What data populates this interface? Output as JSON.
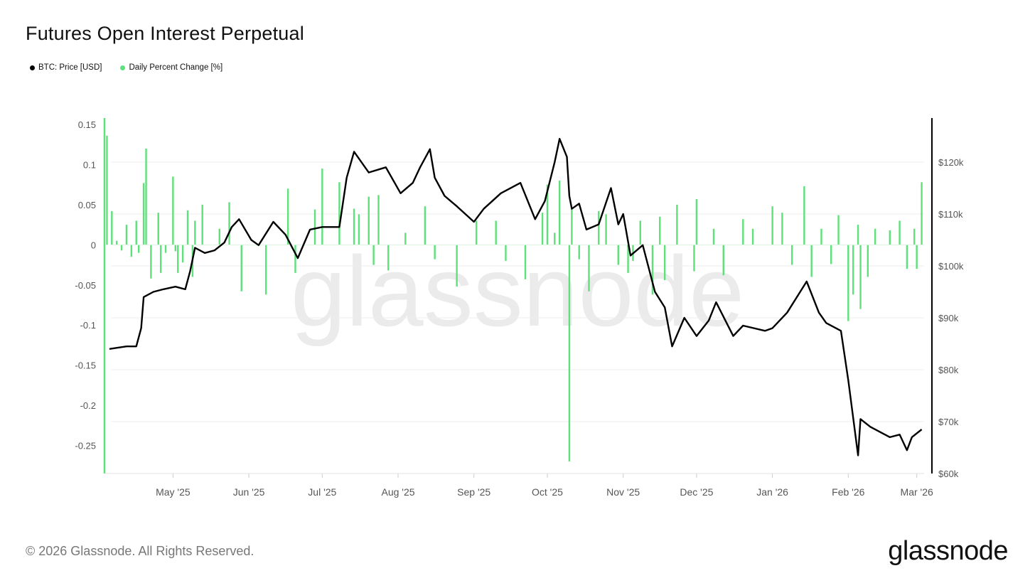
{
  "title": "Futures Open Interest Perpetual",
  "legend": [
    {
      "label": "BTC: Price [USD]",
      "color": "#000000"
    },
    {
      "label": "Daily Percent Change [%]",
      "color": "#5ee07a"
    }
  ],
  "footer": "© 2026 Glassnode. All Rights Reserved.",
  "brand": "glassnode",
  "watermark": "glassnode",
  "chart_data": {
    "type": "line+bar",
    "left_axis": {
      "label": "",
      "ticks": [
        "0.15",
        "0.1",
        "0.05",
        "0",
        "-0.05",
        "-0.1",
        "-0.15",
        "-0.2",
        "-0.25"
      ],
      "values": [
        0.15,
        0.1,
        0.05,
        0,
        -0.05,
        -0.1,
        -0.15,
        -0.2,
        -0.25
      ],
      "range": [
        -0.285,
        0.158
      ]
    },
    "right_axis": {
      "label": "",
      "ticks": [
        "$120k",
        "$110k",
        "$100k",
        "$90k",
        "$80k",
        "$70k",
        "$60k"
      ],
      "values": [
        120000,
        110000,
        100000,
        90000,
        80000,
        70000,
        60000
      ],
      "range": [
        60000,
        128500
      ]
    },
    "x_ticks": [
      "May '25",
      "Jun '25",
      "Jul '25",
      "Aug '25",
      "Sep '25",
      "Oct '25",
      "Nov '25",
      "Dec '25",
      "Jan '26",
      "Feb '26",
      "Mar '26"
    ],
    "x_tick_dates": [
      "2025-05-01",
      "2025-06-01",
      "2025-07-01",
      "2025-08-01",
      "2025-09-01",
      "2025-10-01",
      "2025-11-01",
      "2025-12-01",
      "2026-01-01",
      "2026-02-01",
      "2026-03-01"
    ],
    "x_range": [
      "2025-04-03",
      "2026-03-04"
    ],
    "grid": true,
    "legend_position": "top-left",
    "series": [
      {
        "name": "BTC: Price [USD]",
        "axis": "right",
        "color": "#000000",
        "points": [
          [
            "2025-04-05",
            84000
          ],
          [
            "2025-04-12",
            84500
          ],
          [
            "2025-04-16",
            84500
          ],
          [
            "2025-04-18",
            88000
          ],
          [
            "2025-04-19",
            94000
          ],
          [
            "2025-04-23",
            95000
          ],
          [
            "2025-04-27",
            95500
          ],
          [
            "2025-05-02",
            96000
          ],
          [
            "2025-05-06",
            95500
          ],
          [
            "2025-05-08",
            99000
          ],
          [
            "2025-05-10",
            103500
          ],
          [
            "2025-05-14",
            102500
          ],
          [
            "2025-05-18",
            103000
          ],
          [
            "2025-05-22",
            104500
          ],
          [
            "2025-05-25",
            107500
          ],
          [
            "2025-05-28",
            109000
          ],
          [
            "2025-06-02",
            105000
          ],
          [
            "2025-06-05",
            104000
          ],
          [
            "2025-06-11",
            108500
          ],
          [
            "2025-06-16",
            106000
          ],
          [
            "2025-06-21",
            101500
          ],
          [
            "2025-06-26",
            107000
          ],
          [
            "2025-07-01",
            107500
          ],
          [
            "2025-07-08",
            107500
          ],
          [
            "2025-07-11",
            117000
          ],
          [
            "2025-07-14",
            122000
          ],
          [
            "2025-07-20",
            118000
          ],
          [
            "2025-07-27",
            119000
          ],
          [
            "2025-08-02",
            114000
          ],
          [
            "2025-08-07",
            116000
          ],
          [
            "2025-08-10",
            119000
          ],
          [
            "2025-08-14",
            122500
          ],
          [
            "2025-08-16",
            117000
          ],
          [
            "2025-08-20",
            113500
          ],
          [
            "2025-08-25",
            111500
          ],
          [
            "2025-09-01",
            108500
          ],
          [
            "2025-09-05",
            111000
          ],
          [
            "2025-09-12",
            114000
          ],
          [
            "2025-09-20",
            116000
          ],
          [
            "2025-09-26",
            109000
          ],
          [
            "2025-09-30",
            112500
          ],
          [
            "2025-10-04",
            120000
          ],
          [
            "2025-10-06",
            124500
          ],
          [
            "2025-10-09",
            121000
          ],
          [
            "2025-10-10",
            113500
          ],
          [
            "2025-10-11",
            111000
          ],
          [
            "2025-10-14",
            112000
          ],
          [
            "2025-10-17",
            107000
          ],
          [
            "2025-10-22",
            108000
          ],
          [
            "2025-10-27",
            115000
          ],
          [
            "2025-10-30",
            108000
          ],
          [
            "2025-11-01",
            110000
          ],
          [
            "2025-11-04",
            102000
          ],
          [
            "2025-11-09",
            104000
          ],
          [
            "2025-11-14",
            95000
          ],
          [
            "2025-11-18",
            92000
          ],
          [
            "2025-11-21",
            84500
          ],
          [
            "2025-11-26",
            90000
          ],
          [
            "2025-12-01",
            86500
          ],
          [
            "2025-12-06",
            89500
          ],
          [
            "2025-12-09",
            93000
          ],
          [
            "2025-12-16",
            86500
          ],
          [
            "2025-12-20",
            88500
          ],
          [
            "2025-12-29",
            87500
          ],
          [
            "2026-01-01",
            88000
          ],
          [
            "2026-01-07",
            91000
          ],
          [
            "2026-01-13",
            95500
          ],
          [
            "2026-01-15",
            97000
          ],
          [
            "2026-01-20",
            91000
          ],
          [
            "2026-01-23",
            89000
          ],
          [
            "2026-01-29",
            87500
          ],
          [
            "2026-02-01",
            78000
          ],
          [
            "2026-02-05",
            63500
          ],
          [
            "2026-02-06",
            70500
          ],
          [
            "2026-02-10",
            69000
          ],
          [
            "2026-02-18",
            67000
          ],
          [
            "2026-02-22",
            67500
          ],
          [
            "2026-02-25",
            64500
          ],
          [
            "2026-02-27",
            67000
          ],
          [
            "2026-03-03",
            68500
          ]
        ]
      },
      {
        "name": "Daily Percent Change [%]",
        "axis": "left",
        "color": "#5ee07a",
        "points": [
          [
            "2025-04-04",
            0.136
          ],
          [
            "2025-04-06",
            0.042
          ],
          [
            "2025-04-08",
            0.005
          ],
          [
            "2025-04-10",
            -0.007
          ],
          [
            "2025-04-12",
            0.025
          ],
          [
            "2025-04-14",
            -0.015
          ],
          [
            "2025-04-16",
            0.03
          ],
          [
            "2025-04-17",
            -0.01
          ],
          [
            "2025-04-19",
            0.077
          ],
          [
            "2025-04-20",
            0.12
          ],
          [
            "2025-04-22",
            -0.042
          ],
          [
            "2025-04-25",
            0.04
          ],
          [
            "2025-04-26",
            -0.035
          ],
          [
            "2025-04-28",
            -0.01
          ],
          [
            "2025-05-01",
            0.085
          ],
          [
            "2025-05-02",
            -0.008
          ],
          [
            "2025-05-03",
            -0.035
          ],
          [
            "2025-05-05",
            -0.022
          ],
          [
            "2025-05-07",
            0.043
          ],
          [
            "2025-05-09",
            -0.04
          ],
          [
            "2025-05-10",
            0.03
          ],
          [
            "2025-05-13",
            0.05
          ],
          [
            "2025-05-20",
            0.02
          ],
          [
            "2025-05-24",
            0.053
          ],
          [
            "2025-05-29",
            -0.058
          ],
          [
            "2025-06-08",
            -0.062
          ],
          [
            "2025-06-17",
            0.07
          ],
          [
            "2025-06-20",
            -0.035
          ],
          [
            "2025-06-28",
            0.044
          ],
          [
            "2025-07-01",
            0.095
          ],
          [
            "2025-07-08",
            0.078
          ],
          [
            "2025-07-14",
            0.045
          ],
          [
            "2025-07-16",
            0.038
          ],
          [
            "2025-07-20",
            0.06
          ],
          [
            "2025-07-22",
            -0.025
          ],
          [
            "2025-07-24",
            0.062
          ],
          [
            "2025-07-28",
            -0.032
          ],
          [
            "2025-08-04",
            0.015
          ],
          [
            "2025-08-12",
            0.048
          ],
          [
            "2025-08-16",
            -0.018
          ],
          [
            "2025-08-25",
            -0.052
          ],
          [
            "2025-09-02",
            0.03
          ],
          [
            "2025-09-10",
            0.03
          ],
          [
            "2025-09-14",
            -0.02
          ],
          [
            "2025-09-22",
            -0.043
          ],
          [
            "2025-09-29",
            0.04
          ],
          [
            "2025-10-01",
            0.075
          ],
          [
            "2025-10-04",
            0.015
          ],
          [
            "2025-10-06",
            0.08
          ],
          [
            "2025-10-10",
            -0.27
          ],
          [
            "2025-10-11",
            0.045
          ],
          [
            "2025-10-14",
            -0.018
          ],
          [
            "2025-10-18",
            -0.058
          ],
          [
            "2025-10-22",
            0.042
          ],
          [
            "2025-10-25",
            0.038
          ],
          [
            "2025-10-30",
            -0.025
          ],
          [
            "2025-11-03",
            -0.035
          ],
          [
            "2025-11-05",
            -0.02
          ],
          [
            "2025-11-08",
            0.03
          ],
          [
            "2025-11-13",
            -0.062
          ],
          [
            "2025-11-16",
            0.035
          ],
          [
            "2025-11-18",
            -0.044
          ],
          [
            "2025-11-23",
            0.05
          ],
          [
            "2025-11-30",
            -0.033
          ],
          [
            "2025-12-01",
            0.057
          ],
          [
            "2025-12-08",
            0.02
          ],
          [
            "2025-12-12",
            -0.038
          ],
          [
            "2025-12-20",
            0.032
          ],
          [
            "2025-12-24",
            0.02
          ],
          [
            "2026-01-01",
            0.048
          ],
          [
            "2026-01-05",
            0.04
          ],
          [
            "2026-01-09",
            -0.025
          ],
          [
            "2026-01-14",
            0.073
          ],
          [
            "2026-01-17",
            -0.04
          ],
          [
            "2026-01-21",
            0.02
          ],
          [
            "2026-01-25",
            -0.024
          ],
          [
            "2026-01-28",
            0.037
          ],
          [
            "2026-02-01",
            -0.095
          ],
          [
            "2026-02-03",
            -0.062
          ],
          [
            "2026-02-05",
            0.025
          ],
          [
            "2026-02-06",
            -0.08
          ],
          [
            "2026-02-09",
            -0.04
          ],
          [
            "2026-02-12",
            0.02
          ],
          [
            "2026-02-18",
            0.018
          ],
          [
            "2026-02-22",
            0.03
          ],
          [
            "2026-02-25",
            -0.03
          ],
          [
            "2026-02-28",
            0.02
          ],
          [
            "2026-03-01",
            -0.03
          ],
          [
            "2026-03-03",
            0.078
          ]
        ]
      }
    ]
  }
}
